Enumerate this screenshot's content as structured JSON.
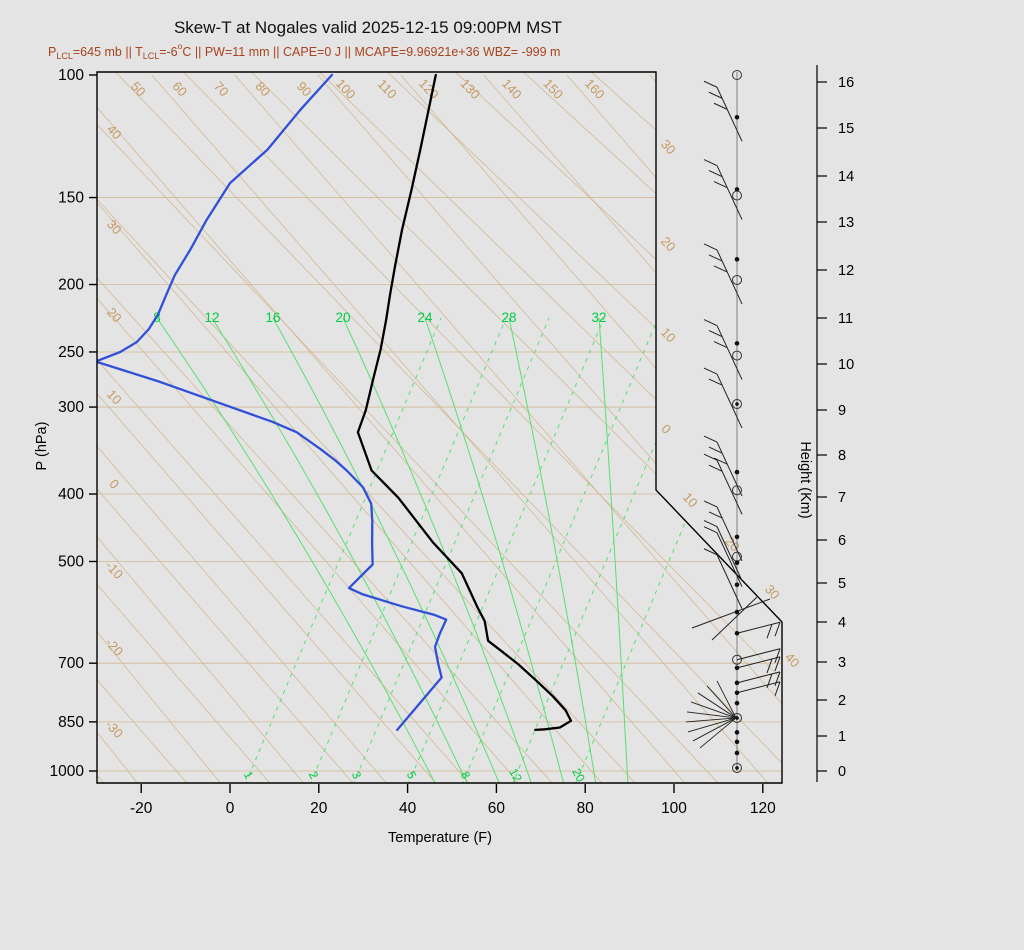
{
  "page": {
    "background": "#e4e4e4"
  },
  "chart_data": {
    "type": "line",
    "subtype": "skew-t-log-p-sounding",
    "title": "Skew-T at Nogales valid 2025-12-15 09:00PM MST",
    "subtitle_segments": [
      {
        "t": "P"
      },
      {
        "t": "LCL",
        "style": "sub"
      },
      {
        "t": "=645 mb || T"
      },
      {
        "t": "LCL",
        "style": "sub"
      },
      {
        "t": "=-6"
      },
      {
        "t": "o",
        "style": "sup"
      },
      {
        "t": "C || PW=11 mm || CAPE=0 J || MCAPE=9.96921e+36 WBZ= -999 m"
      }
    ],
    "axes": {
      "left": {
        "label": "P (hPa)",
        "ticks": [
          100,
          150,
          200,
          250,
          300,
          400,
          500,
          700,
          850,
          1000
        ],
        "scale": "log"
      },
      "bottom": {
        "label": "Temperature (F)",
        "ticks": [
          -20,
          0,
          20,
          40,
          60,
          80,
          100,
          120
        ],
        "range": [
          -30,
          125
        ]
      },
      "right": {
        "label": "Height (Km)",
        "ticks": [
          0,
          1,
          2,
          3,
          4,
          5,
          6,
          7,
          8,
          9,
          10,
          11,
          12,
          13,
          14,
          15,
          16
        ]
      }
    },
    "isotherm_labels": {
      "top": [
        50,
        60,
        70,
        80,
        90,
        100,
        110,
        120,
        130,
        140,
        150,
        160
      ],
      "left_edge": [
        40,
        30,
        20,
        10,
        0,
        -10,
        -20,
        -30
      ],
      "right_edge": [
        30,
        20,
        10,
        0
      ],
      "diagonal_edge": [
        10,
        20,
        30,
        40
      ]
    },
    "moist_adiabats": {
      "unit": "C",
      "values": [
        8,
        12,
        16,
        20,
        24,
        28,
        32
      ]
    },
    "mixing_ratio_lines": {
      "unit": "g/kg",
      "values": [
        1,
        2,
        3,
        5,
        8,
        12,
        20
      ]
    },
    "series": [
      {
        "name": "temperature",
        "color": "#000000",
        "units": [
          "hPa",
          "F"
        ],
        "points": [
          [
            100,
            -110.4
          ],
          [
            112,
            -104.3
          ],
          [
            128,
            -97.1
          ],
          [
            146,
            -90.1
          ],
          [
            167,
            -83.1
          ],
          [
            188,
            -76.6
          ],
          [
            207,
            -71.2
          ],
          [
            225,
            -66.4
          ],
          [
            248,
            -61.0
          ],
          [
            273,
            -56.1
          ],
          [
            303,
            -50.7
          ],
          [
            326,
            -47.5
          ],
          [
            370,
            -35.8
          ],
          [
            405,
            -23.6
          ],
          [
            469,
            -5.9
          ],
          [
            520,
            7.7
          ],
          [
            582,
            18.9
          ],
          [
            609,
            23.6
          ],
          [
            650,
            28.8
          ],
          [
            672,
            34.0
          ],
          [
            702,
            40.8
          ],
          [
            743,
            48.9
          ],
          [
            781,
            55.9
          ],
          [
            818,
            61.9
          ],
          [
            847,
            65.5
          ],
          [
            866,
            64.5
          ],
          [
            871,
            61.5
          ],
          [
            873,
            59.5
          ]
        ]
      },
      {
        "name": "dewpoint",
        "color": "#3050d8",
        "units": [
          "hPa",
          "F"
        ],
        "points": [
          [
            100,
            -133.8
          ],
          [
            112,
            -133.1
          ],
          [
            128,
            -131.5
          ],
          [
            143,
            -132.4
          ],
          [
            162,
            -129.3
          ],
          [
            178,
            -126.4
          ],
          [
            194,
            -124.1
          ],
          [
            207,
            -121.6
          ],
          [
            221,
            -119.0
          ],
          [
            232,
            -117.8
          ],
          [
            242,
            -117.6
          ],
          [
            250,
            -119.1
          ],
          [
            258,
            -122.5
          ],
          [
            276,
            -103.4
          ],
          [
            298,
            -83.5
          ],
          [
            315,
            -69.1
          ],
          [
            326,
            -61.3
          ],
          [
            345,
            -52.0
          ],
          [
            358,
            -46.2
          ],
          [
            370,
            -41.4
          ],
          [
            391,
            -34.0
          ],
          [
            413,
            -28.4
          ],
          [
            437,
            -24.3
          ],
          [
            470,
            -19.4
          ],
          [
            505,
            -14.4
          ],
          [
            530,
            -14.4
          ],
          [
            546,
            -14.4
          ],
          [
            557,
            -10.1
          ],
          [
            580,
            1.6
          ],
          [
            596,
            10.6
          ],
          [
            606,
            14.6
          ],
          [
            636,
            16.4
          ],
          [
            663,
            18.2
          ],
          [
            701,
            22.7
          ],
          [
            734,
            26.6
          ],
          [
            873,
            28.4
          ]
        ]
      }
    ],
    "wind_barbs": [
      {
        "p": 100,
        "marker": "circle",
        "barb": "none"
      },
      {
        "p": 115,
        "marker": "dot",
        "barb": "nw3"
      },
      {
        "p": 146,
        "marker": "dot",
        "barb": "none"
      },
      {
        "p": 149,
        "marker": "circle",
        "barb": "nw3"
      },
      {
        "p": 184,
        "marker": "dot",
        "barb": "none"
      },
      {
        "p": 197,
        "marker": "circle",
        "barb": "nw3"
      },
      {
        "p": 243,
        "marker": "dot",
        "barb": "none"
      },
      {
        "p": 253,
        "marker": "circle",
        "barb": "nw3"
      },
      {
        "p": 297,
        "marker": "circled-dot",
        "barb": "nw2"
      },
      {
        "p": 372,
        "marker": "dot",
        "barb": "nw3"
      },
      {
        "p": 395,
        "marker": "circle",
        "barb": "nw2"
      },
      {
        "p": 461,
        "marker": "dot",
        "barb": "nw2"
      },
      {
        "p": 492,
        "marker": "circle",
        "barb": "nw1"
      },
      {
        "p": 502,
        "marker": "dot",
        "barb": "nw1"
      },
      {
        "p": 540,
        "marker": "dot",
        "barb": "nw1"
      },
      {
        "p": 591,
        "marker": "dot",
        "barb": "cross"
      },
      {
        "p": 634,
        "marker": "dot",
        "barb": "right2"
      },
      {
        "p": 692,
        "marker": "circle",
        "barb": "right1"
      },
      {
        "p": 711,
        "marker": "dot",
        "barb": "right2"
      },
      {
        "p": 747,
        "marker": "dot",
        "barb": "right2"
      },
      {
        "p": 772,
        "marker": "dot",
        "barb": "right1"
      },
      {
        "p": 799,
        "marker": "dot",
        "barb": "none"
      },
      {
        "p": 839,
        "marker": "circled-dot",
        "barb": "fan"
      },
      {
        "p": 880,
        "marker": "dot",
        "barb": "none"
      },
      {
        "p": 908,
        "marker": "dot",
        "barb": "none"
      },
      {
        "p": 942,
        "marker": "dot",
        "barb": "none"
      },
      {
        "p": 990,
        "marker": "circled-dot",
        "barb": "none"
      }
    ],
    "colors": {
      "isotherm_lines": "#d2b48c",
      "isotherm_labels": "#c49a62",
      "moist_lines": "#55e070",
      "moist_labels": "#00d salata",
      "green_labels": "#00cc44",
      "temperature_trace": "#000000",
      "dewpoint_trace": "#3050d8",
      "subtitle": "#a8431e",
      "axis": "#000000",
      "barbs": "#222222"
    }
  }
}
